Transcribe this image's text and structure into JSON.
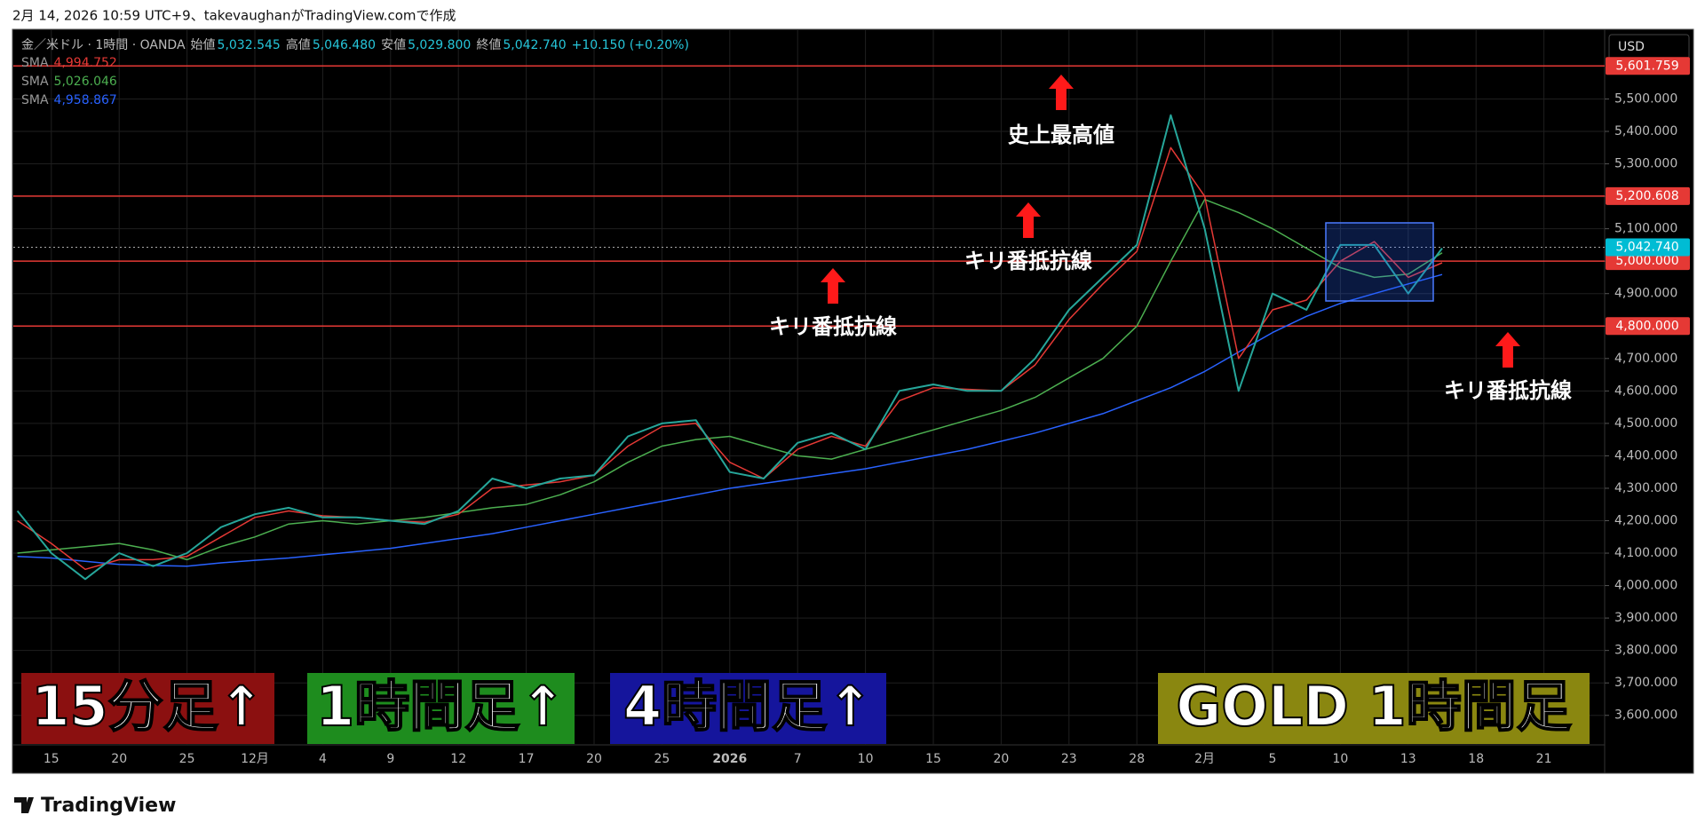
{
  "header": "2月 14, 2026 10:59 UTC+9、takevaughanがTradingView.comで作成",
  "footer_logo": "TradingView",
  "chart_data": {
    "type": "line",
    "symbol": "金／米ドル · 1時間 · OANDA",
    "ohlc": [
      {
        "label": "始値",
        "value": "5,032.545"
      },
      {
        "label": "高値",
        "value": "5,046.480"
      },
      {
        "label": "安値",
        "value": "5,029.800"
      },
      {
        "label": "終値",
        "value": "5,042.740"
      }
    ],
    "change": "+10.150 (+0.20%)",
    "currency": "USD",
    "categories": [
      null,
      "15",
      null,
      "20",
      null,
      "25",
      null,
      "12月",
      null,
      "4",
      null,
      "9",
      null,
      "12",
      null,
      "17",
      null,
      "20",
      null,
      "25",
      null,
      "2026",
      null,
      "7",
      null,
      "10",
      null,
      "15",
      null,
      "20",
      null,
      "23",
      null,
      "28",
      null,
      "2月",
      null,
      "5",
      null,
      "10",
      null,
      "13",
      null,
      "18",
      null,
      "21",
      null
    ],
    "series": [
      {
        "name": "金／米ドル",
        "color": "#26a69a",
        "values": [
          4230,
          4100,
          4020,
          4100,
          4060,
          4100,
          4180,
          4220,
          4240,
          4210,
          4210,
          4200,
          4190,
          4230,
          4330,
          4300,
          4330,
          4340,
          4460,
          4500,
          4510,
          4350,
          4330,
          4440,
          4470,
          4420,
          4600,
          4620,
          4600,
          4600,
          4700,
          4850,
          4950,
          5050,
          5450,
          5100,
          4600,
          4900,
          4850,
          5050,
          5050,
          4900,
          5040,
          null,
          null,
          null,
          null
        ]
      },
      {
        "name": "SMA",
        "legend_value": "4,994.752",
        "color": "#e53935",
        "values": [
          4200,
          4130,
          4050,
          4080,
          4080,
          4090,
          4150,
          4210,
          4230,
          4215,
          4210,
          4200,
          4195,
          4220,
          4300,
          4310,
          4320,
          4340,
          4430,
          4490,
          4500,
          4380,
          4330,
          4420,
          4460,
          4430,
          4570,
          4610,
          4605,
          4600,
          4680,
          4820,
          4930,
          5030,
          5350,
          5200,
          4700,
          4850,
          4880,
          5000,
          5060,
          4950,
          4995,
          null,
          null,
          null,
          null
        ]
      },
      {
        "name": "SMA",
        "legend_value": "5,026.046",
        "color": "#4caf50",
        "values": [
          4100,
          4110,
          4120,
          4130,
          4110,
          4080,
          4120,
          4150,
          4190,
          4200,
          4190,
          4200,
          4210,
          4225,
          4240,
          4250,
          4280,
          4320,
          4380,
          4430,
          4450,
          4460,
          4430,
          4400,
          4390,
          4420,
          4450,
          4480,
          4510,
          4540,
          4580,
          4640,
          4700,
          4800,
          5000,
          5190,
          5150,
          5100,
          5040,
          4980,
          4950,
          4960,
          5026,
          null,
          null,
          null,
          null
        ]
      },
      {
        "name": "SMA",
        "legend_value": "4,958.867",
        "color": "#2962ff",
        "values": [
          4090,
          4085,
          4075,
          4065,
          4062,
          4060,
          4070,
          4078,
          4085,
          4095,
          4105,
          4115,
          4130,
          4145,
          4160,
          4180,
          4200,
          4220,
          4240,
          4260,
          4280,
          4300,
          4315,
          4330,
          4345,
          4360,
          4380,
          4400,
          4420,
          4445,
          4470,
          4500,
          4530,
          4570,
          4610,
          4660,
          4720,
          4780,
          4830,
          4870,
          4900,
          4930,
          4959,
          null,
          null,
          null,
          null
        ]
      }
    ],
    "ylim": [
      3509,
      5712
    ],
    "yticks": [
      {
        "value": 3600,
        "label": "3,600.000"
      },
      {
        "value": 3700,
        "label": "3,700.000"
      },
      {
        "value": 3800,
        "label": "3,800.000"
      },
      {
        "value": 3900,
        "label": "3,900.000"
      },
      {
        "value": 4000,
        "label": "4,000.000"
      },
      {
        "value": 4100,
        "label": "4,100.000"
      },
      {
        "value": 4200,
        "label": "4,200.000"
      },
      {
        "value": 4300,
        "label": "4,300.000"
      },
      {
        "value": 4400,
        "label": "4,400.000"
      },
      {
        "value": 4500,
        "label": "4,500.000"
      },
      {
        "value": 4600,
        "label": "4,600.000"
      },
      {
        "value": 4700,
        "label": "4,700.000"
      },
      {
        "value": 4800,
        "label": "4,800.000"
      },
      {
        "value": 4900,
        "label": "4,900.000"
      },
      {
        "value": 5000,
        "label": "5,000.000"
      },
      {
        "value": 5100,
        "label": "5,100.000"
      },
      {
        "value": 5200,
        "label": "5,200.000"
      },
      {
        "value": 5300,
        "label": "5,300.000"
      },
      {
        "value": 5400,
        "label": "5,400.000"
      },
      {
        "value": 5500,
        "label": "5,500.000"
      }
    ],
    "grid": true,
    "levels": [
      {
        "value": 5601.759,
        "label": "5,601.759",
        "color": "#e53935"
      },
      {
        "value": 5200.608,
        "label": "5,200.608",
        "color": "#e53935"
      },
      {
        "value": 5000,
        "label": "5,000.000",
        "color": "#e53935"
      },
      {
        "value": 4800,
        "label": "4,800.000",
        "color": "#e53935"
      }
    ],
    "last_price": {
      "value": 5042.74,
      "label": "5,042.740",
      "color": "#00bcd4"
    },
    "annotations": [
      "史上最高値",
      "キリ番抵抗線",
      "キリ番抵抗線",
      "キリ番抵抗線"
    ],
    "tags": [
      {
        "text": "15分足↑",
        "color": "#8b1010"
      },
      {
        "text": "1時間足↑",
        "color": "#1e8c1e"
      },
      {
        "text": "4時間足↑",
        "color": "#15159c"
      },
      {
        "text": "GOLD 1時間足",
        "color": "#8a8710"
      }
    ]
  }
}
